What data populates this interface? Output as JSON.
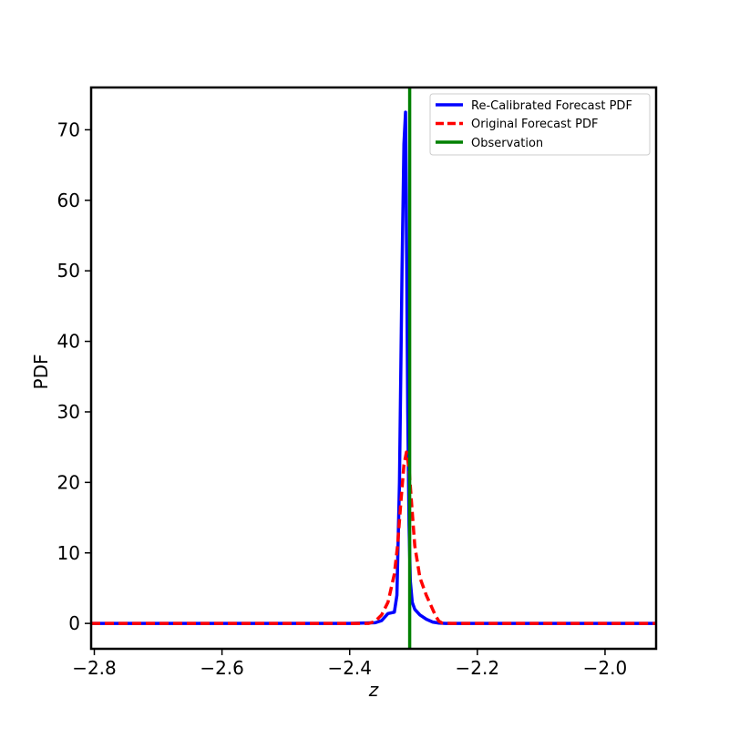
{
  "chart_data": {
    "type": "line",
    "xlabel": "z",
    "ylabel": "PDF",
    "xlim": [
      -2.805,
      -1.92
    ],
    "ylim": [
      -3.6,
      76
    ],
    "x_ticks": [
      -2.8,
      -2.6,
      -2.4,
      -2.2,
      -2.0
    ],
    "x_tick_labels": [
      "−2.8",
      "−2.6",
      "−2.4",
      "−2.2",
      "−2.0"
    ],
    "y_ticks": [
      0,
      10,
      20,
      30,
      40,
      50,
      60,
      70
    ],
    "y_tick_labels": [
      "0",
      "10",
      "20",
      "30",
      "40",
      "50",
      "60",
      "70"
    ],
    "grid": false,
    "legend_position": "top-right",
    "series": [
      {
        "name": "Re-Calibrated Forecast PDF",
        "color": "#0000ff",
        "style": "solid",
        "x": [
          -2.805,
          -2.4,
          -2.36,
          -2.35,
          -2.345,
          -2.34,
          -2.335,
          -2.33,
          -2.326,
          -2.322,
          -2.318,
          -2.315,
          -2.3125,
          -2.311,
          -2.309,
          -2.307,
          -2.305,
          -2.302,
          -2.298,
          -2.29,
          -2.28,
          -2.27,
          -2.26,
          -2.25,
          -2.23,
          -1.92
        ],
        "y": [
          0,
          0,
          0.1,
          0.4,
          0.9,
          1.4,
          1.5,
          1.6,
          4,
          20,
          50,
          68,
          72.5,
          55,
          30,
          14,
          6,
          3,
          2,
          1.2,
          0.6,
          0.2,
          0.05,
          0,
          0,
          0
        ]
      },
      {
        "name": "Original Forecast PDF",
        "color": "#ff0000",
        "style": "dashed",
        "x": [
          -2.805,
          -2.37,
          -2.36,
          -2.35,
          -2.34,
          -2.33,
          -2.325,
          -2.32,
          -2.315,
          -2.311,
          -2.307,
          -2.303,
          -2.298,
          -2.29,
          -2.28,
          -2.27,
          -2.265,
          -2.26,
          -2.255,
          -2.24,
          -1.92
        ],
        "y": [
          0,
          0,
          0.3,
          1.2,
          3,
          7,
          11,
          17,
          22.5,
          24.3,
          22,
          17,
          11,
          6.5,
          4,
          2,
          1,
          0.3,
          0.05,
          0,
          0
        ]
      }
    ],
    "observation": {
      "name": "Observation",
      "color": "#008000",
      "x": -2.306
    }
  }
}
